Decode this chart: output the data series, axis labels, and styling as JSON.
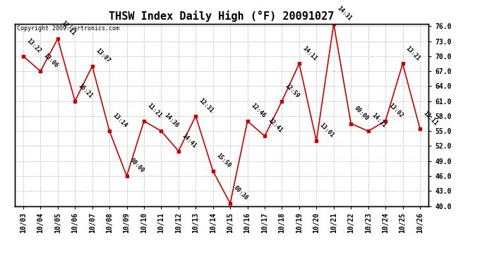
{
  "title": "THSW Index Daily High (°F) 20091027",
  "copyright": "Copyright 2009 Cartronics.com",
  "x_labels": [
    "10/03",
    "10/04",
    "10/05",
    "10/06",
    "10/07",
    "10/08",
    "10/09",
    "10/10",
    "10/11",
    "10/12",
    "10/13",
    "10/14",
    "10/15",
    "10/16",
    "10/17",
    "10/18",
    "10/19",
    "10/20",
    "10/21",
    "10/22",
    "10/23",
    "10/24",
    "10/25",
    "10/26"
  ],
  "y_values": [
    70.0,
    67.0,
    73.5,
    61.0,
    68.0,
    55.0,
    46.0,
    57.0,
    55.0,
    51.0,
    58.0,
    47.0,
    40.5,
    57.0,
    54.0,
    61.0,
    68.5,
    53.0,
    76.5,
    56.5,
    55.0,
    57.0,
    68.5,
    55.5
  ],
  "point_labels": [
    "13:22",
    "13:06",
    "12:11",
    "16:21",
    "13:07",
    "13:14",
    "00:00",
    "11:21",
    "14:36",
    "14:41",
    "12:31",
    "15:50",
    "00:36",
    "12:46",
    "12:41",
    "12:59",
    "14:11",
    "13:01",
    "14:31",
    "00:00",
    "14:31",
    "13:02",
    "13:21",
    "12:11"
  ],
  "ylim_min": 40.0,
  "ylim_max": 76.0,
  "yticks": [
    40.0,
    43.0,
    46.0,
    49.0,
    52.0,
    55.0,
    58.0,
    61.0,
    64.0,
    67.0,
    70.0,
    73.0,
    76.0
  ],
  "line_color": "#cc0000",
  "marker_color": "#cc0000",
  "bg_color": "#ffffff",
  "grid_color": "#bbbbbb",
  "title_fontsize": 11,
  "tick_fontsize": 7,
  "label_fontsize": 6,
  "copyright_fontsize": 6
}
